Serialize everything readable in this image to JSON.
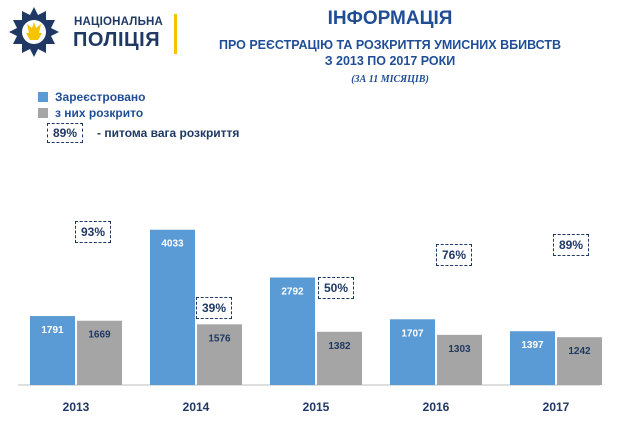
{
  "header": {
    "logo_line1": "НАЦІОНАЛЬНА",
    "logo_line2": "ПОЛІЦІЯ",
    "title": "ІНФОРМАЦІЯ",
    "subtitle_line1": "ПРО РЕЄСТРАЦІЮ ТА РОЗКРИТТЯ УМИСНИХ ВБИВСТВ",
    "subtitle_line2": "З 2013 ПО 2017 РОКИ",
    "period": "(ЗА 11 МІСЯЦІВ)"
  },
  "legend": {
    "series1": "Зареєстровано",
    "series2": "з них розкрито",
    "ratio_example": "89%",
    "ratio_text": "- питома вага розкриття"
  },
  "colors": {
    "registered": "#5b9bd5",
    "solved": "#a5a5a5",
    "text": "#1f3864",
    "accent": "#f5c400"
  },
  "chart_data": {
    "type": "bar",
    "categories": [
      "2013",
      "2014",
      "2015",
      "2016",
      "2017"
    ],
    "series": [
      {
        "name": "Зареєстровано",
        "values": [
          1791,
          4033,
          2792,
          1707,
          1397
        ]
      },
      {
        "name": "з них розкрито",
        "values": [
          1669,
          1576,
          1382,
          1303,
          1242
        ]
      }
    ],
    "ratio_labels": [
      "93%",
      "39%",
      "50%",
      "76%",
      "89%"
    ],
    "ylim": [
      0,
      4200
    ]
  }
}
